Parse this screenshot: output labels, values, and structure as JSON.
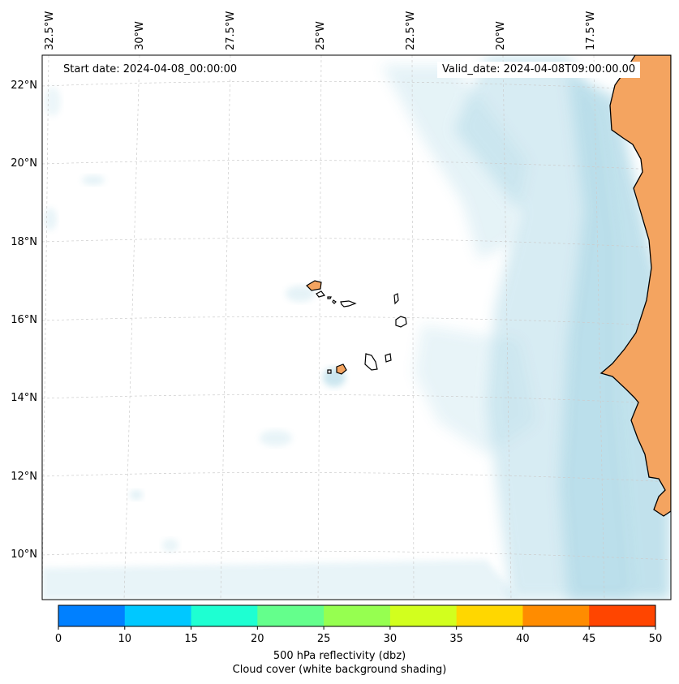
{
  "map": {
    "start_date": "Start date: 2024-04-08_00:00:00",
    "valid_date": "Valid_date: 2024-04-08T09:00:00.00",
    "longitude_labels": [
      "32.5°W",
      "30°W",
      "27.5°W",
      "25°W",
      "22.5°W",
      "20°W",
      "17.5°W"
    ],
    "latitude_labels": [
      "22°N",
      "20°N",
      "18°N",
      "16°N",
      "14°N",
      "12°N",
      "10°N"
    ],
    "land_color": "#f4a460",
    "cloud_color": "#add8e6"
  },
  "colorbar": {
    "ticks": [
      "0",
      "10",
      "15",
      "20",
      "25",
      "30",
      "35",
      "40",
      "45",
      "50"
    ],
    "colors": [
      "#0080ff",
      "#00c8ff",
      "#1effd2",
      "#64ff8c",
      "#96ff50",
      "#d2ff1e",
      "#ffd700",
      "#ff8c00",
      "#ff4500"
    ],
    "label_line1": "500 hPa reflectivity (dbz)",
    "label_line2": "Cloud cover (white background shading)"
  }
}
